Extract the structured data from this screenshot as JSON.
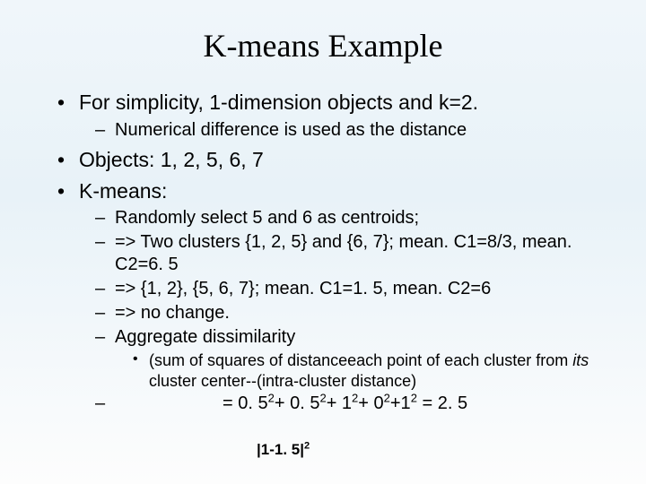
{
  "title": "K-means Example",
  "bullets": {
    "b1": "For simplicity,  1-dimension objects and k=2.",
    "b1_1": "Numerical difference is used as the distance",
    "b2": "Objects: 1, 2,     5, 6, 7",
    "b3": "K-means:",
    "b3_1": "Randomly select 5 and 6 as centroids;",
    "b3_2": "=> Two clusters {1, 2, 5} and {6, 7}; mean. C1=8/3, mean. C2=6. 5",
    "b3_3": "=> {1, 2}, {5, 6, 7}; mean. C1=1. 5, mean. C2=6",
    "b3_4": "=> no change.",
    "b3_5": "Aggregate dissimilarity",
    "b3_5_1a": "(sum of squares of distanceeach point of each cluster from ",
    "b3_5_1b": "its",
    "b3_5_1c": " cluster center--(intra-cluster distance)"
  },
  "equation": {
    "dash": "–",
    "full": "= 0. 52+ 0. 52+ 12+ 02+12 = 2. 5",
    "p1": "= 0. 5",
    "p2": "+ 0. 5",
    "p3": "+ 1",
    "p4": "+ 0",
    "p5": "+1",
    "p6": " = 2. 5"
  },
  "footnote": {
    "base": "|1-1. 5|",
    "exp": "2"
  },
  "style": {
    "title_fontsize": 36,
    "lvl1_fontsize": 23,
    "lvl2_fontsize": 20,
    "lvl3_fontsize": 18,
    "bg_top": "#f0f6fa",
    "bg_mid": "#e8f2f8",
    "bg_bottom": "#fdfdfd",
    "text_color": "#000000"
  }
}
